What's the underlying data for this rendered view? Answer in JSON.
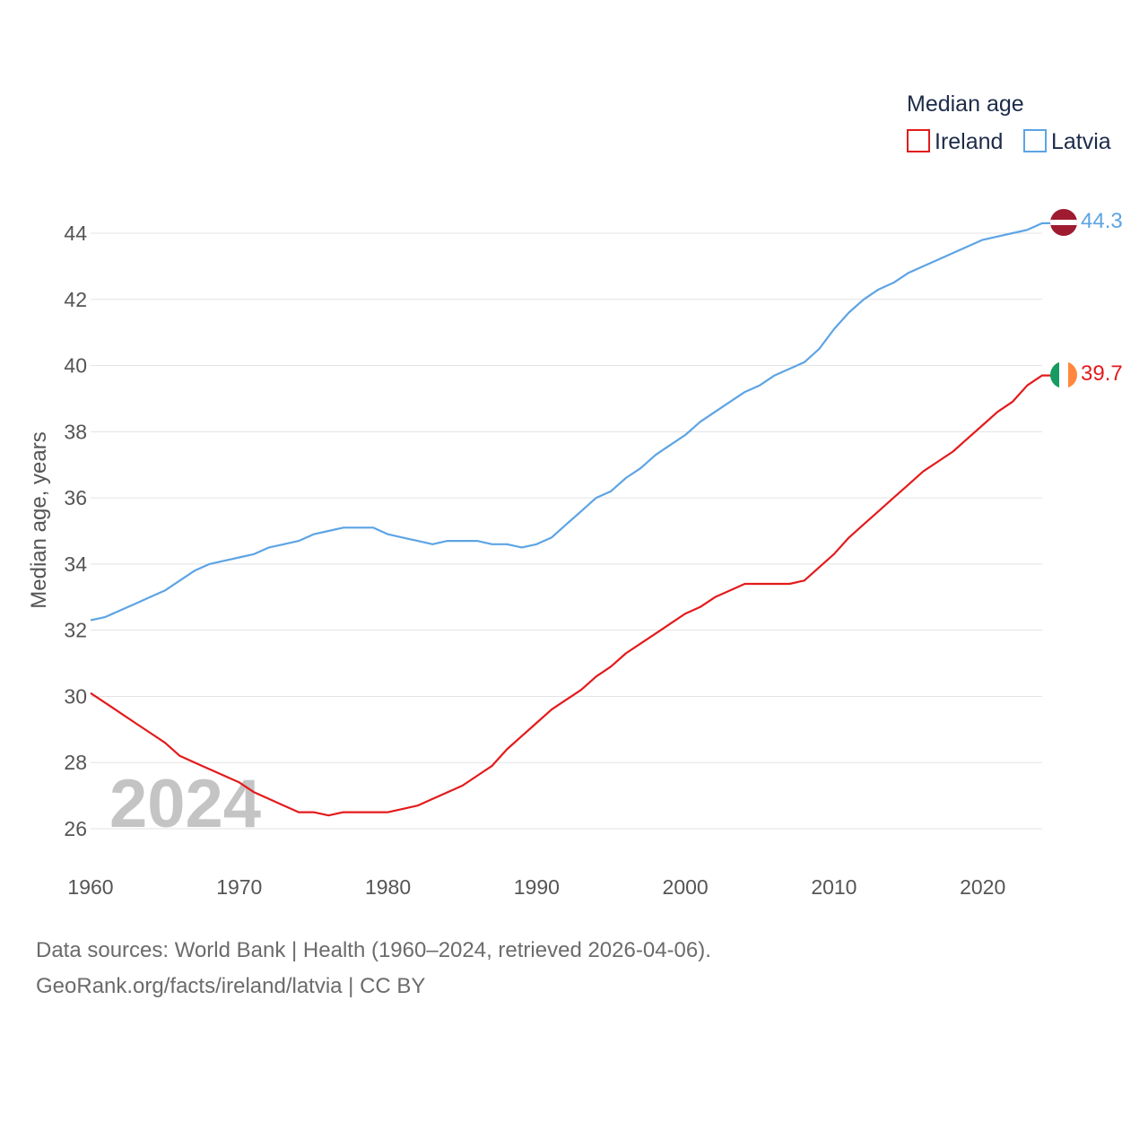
{
  "chart_data": {
    "type": "line",
    "legend_title": "Median age",
    "ylabel": "Median age, years",
    "xlabel": "",
    "ylim": [
      25,
      45
    ],
    "xlim": [
      1960,
      2024
    ],
    "y_ticks": [
      26,
      28,
      30,
      32,
      34,
      36,
      38,
      40,
      42,
      44
    ],
    "x_ticks": [
      1960,
      1970,
      1980,
      1990,
      2000,
      2010,
      2020
    ],
    "watermark_year": "2024",
    "legend_position": "top-right",
    "series": [
      {
        "name": "Ireland",
        "color": "#e31a1c",
        "end_label": "39.7",
        "flag": "ireland",
        "x": [
          1960,
          1961,
          1962,
          1963,
          1964,
          1965,
          1966,
          1967,
          1968,
          1969,
          1970,
          1971,
          1972,
          1973,
          1974,
          1975,
          1976,
          1977,
          1978,
          1979,
          1980,
          1981,
          1982,
          1983,
          1984,
          1985,
          1986,
          1987,
          1988,
          1989,
          1990,
          1991,
          1992,
          1993,
          1994,
          1995,
          1996,
          1997,
          1998,
          1999,
          2000,
          2001,
          2002,
          2003,
          2004,
          2005,
          2006,
          2007,
          2008,
          2009,
          2010,
          2011,
          2012,
          2013,
          2014,
          2015,
          2016,
          2017,
          2018,
          2019,
          2020,
          2021,
          2022,
          2023,
          2024
        ],
        "values": [
          30.1,
          29.8,
          29.5,
          29.2,
          28.9,
          28.6,
          28.2,
          28.0,
          27.8,
          27.6,
          27.4,
          27.1,
          26.9,
          26.7,
          26.5,
          26.5,
          26.4,
          26.5,
          26.5,
          26.5,
          26.5,
          26.6,
          26.7,
          26.9,
          27.1,
          27.3,
          27.6,
          27.9,
          28.4,
          28.8,
          29.2,
          29.6,
          29.9,
          30.2,
          30.6,
          30.9,
          31.3,
          31.6,
          31.9,
          32.2,
          32.5,
          32.7,
          33.0,
          33.2,
          33.4,
          33.4,
          33.4,
          33.4,
          33.5,
          33.9,
          34.3,
          34.8,
          35.2,
          35.6,
          36.0,
          36.4,
          36.8,
          37.1,
          37.4,
          37.8,
          38.2,
          38.6,
          38.9,
          39.4,
          39.7
        ]
      },
      {
        "name": "Latvia",
        "color": "#5da4e4",
        "end_label": "44.3",
        "flag": "latvia",
        "x": [
          1960,
          1961,
          1962,
          1963,
          1964,
          1965,
          1966,
          1967,
          1968,
          1969,
          1970,
          1971,
          1972,
          1973,
          1974,
          1975,
          1976,
          1977,
          1978,
          1979,
          1980,
          1981,
          1982,
          1983,
          1984,
          1985,
          1986,
          1987,
          1988,
          1989,
          1990,
          1991,
          1992,
          1993,
          1994,
          1995,
          1996,
          1997,
          1998,
          1999,
          2000,
          2001,
          2002,
          2003,
          2004,
          2005,
          2006,
          2007,
          2008,
          2009,
          2010,
          2011,
          2012,
          2013,
          2014,
          2015,
          2016,
          2017,
          2018,
          2019,
          2020,
          2021,
          2022,
          2023,
          2024
        ],
        "values": [
          32.3,
          32.4,
          32.6,
          32.8,
          33.0,
          33.2,
          33.5,
          33.8,
          34.0,
          34.1,
          34.2,
          34.3,
          34.5,
          34.6,
          34.7,
          34.9,
          35.0,
          35.1,
          35.1,
          35.1,
          34.9,
          34.8,
          34.7,
          34.6,
          34.7,
          34.7,
          34.7,
          34.6,
          34.6,
          34.5,
          34.6,
          34.8,
          35.2,
          35.6,
          36.0,
          36.2,
          36.6,
          36.9,
          37.3,
          37.6,
          37.9,
          38.3,
          38.6,
          38.9,
          39.2,
          39.4,
          39.7,
          39.9,
          40.1,
          40.5,
          41.1,
          41.6,
          42.0,
          42.3,
          42.5,
          42.8,
          43.0,
          43.2,
          43.4,
          43.6,
          43.8,
          43.9,
          44.0,
          44.1,
          44.3
        ]
      }
    ]
  },
  "footer": {
    "line1": "Data sources: World Bank | Health (1960–2024, retrieved 2026-04-06).",
    "line2": "GeoRank.org/facts/ireland/latvia | CC BY"
  }
}
